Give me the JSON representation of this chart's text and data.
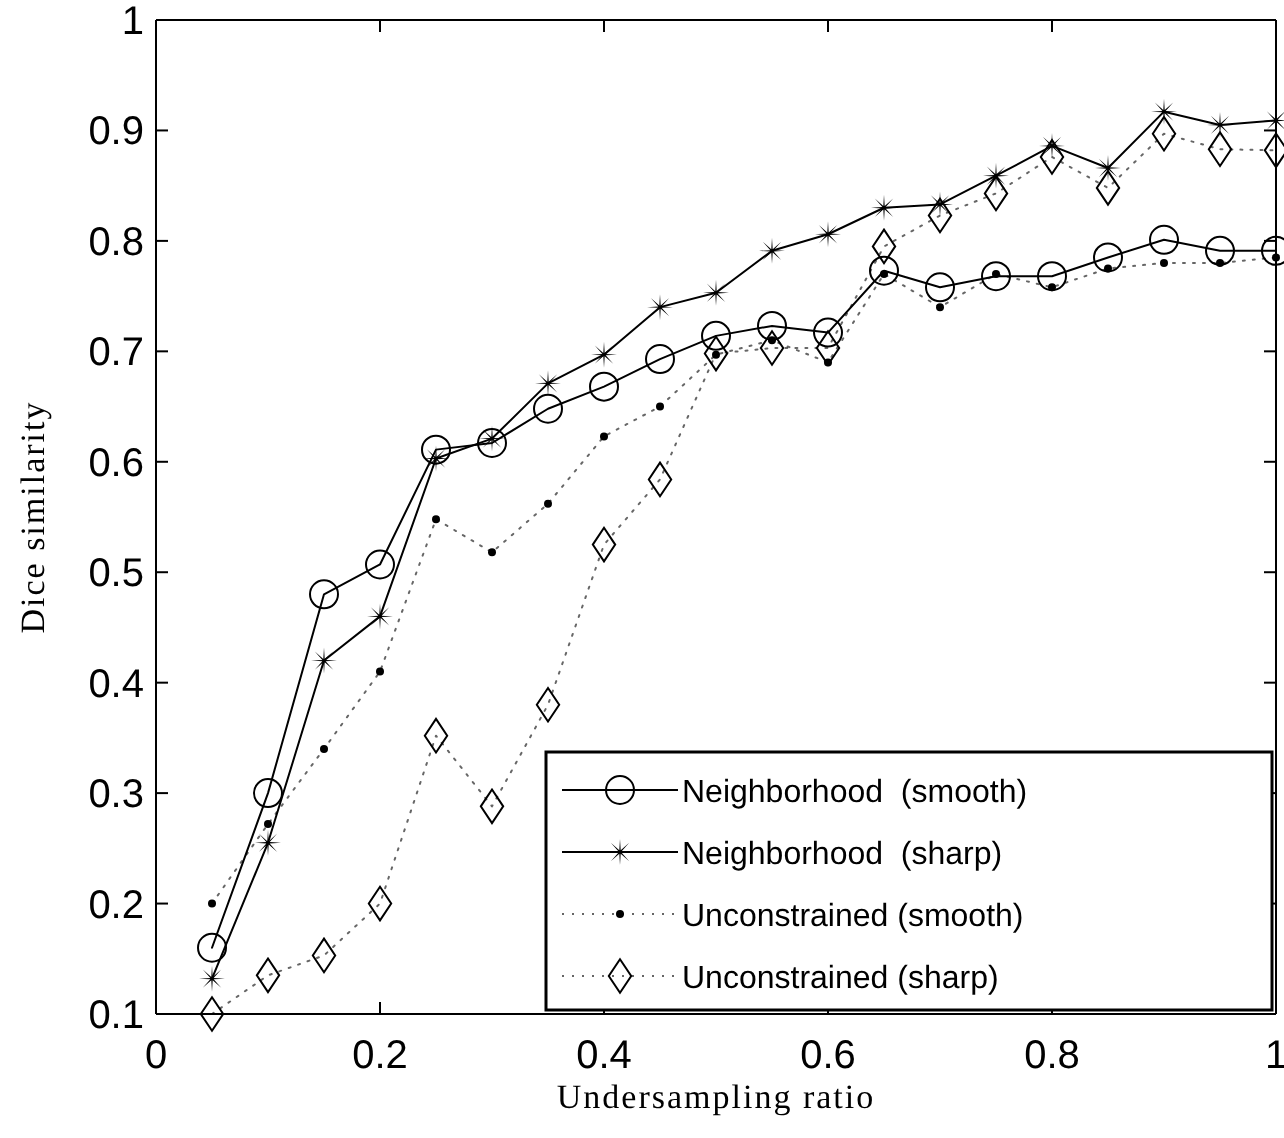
{
  "chart_data": {
    "type": "line",
    "xlabel": "Undersampling ratio",
    "ylabel": "Dice similarity",
    "x": [
      0.05,
      0.1,
      0.15,
      0.2,
      0.25,
      0.3,
      0.35,
      0.4,
      0.45,
      0.5,
      0.55,
      0.6,
      0.65,
      0.7,
      0.75,
      0.8,
      0.85,
      0.9,
      0.95,
      1.0
    ],
    "series": [
      {
        "name": "Neighborhood  (smooth)",
        "color": "#000000",
        "marker": "circle",
        "line_style": "solid",
        "values": [
          0.16,
          0.3,
          0.48,
          0.507,
          0.611,
          0.617,
          0.648,
          0.668,
          0.693,
          0.714,
          0.723,
          0.717,
          0.773,
          0.758,
          0.768,
          0.768,
          0.785,
          0.801,
          0.791,
          0.791
        ]
      },
      {
        "name": "Neighborhood  (sharp)",
        "color": "#000000",
        "marker": "star",
        "line_style": "solid",
        "values": [
          0.132,
          0.255,
          0.42,
          0.46,
          0.603,
          0.621,
          0.671,
          0.697,
          0.74,
          0.753,
          0.791,
          0.806,
          0.83,
          0.833,
          0.859,
          0.886,
          0.866,
          0.917,
          0.905,
          0.909
        ]
      },
      {
        "name": "Unconstrained (smooth)",
        "color": "#000000",
        "marker": "circle",
        "line_style": "dotted",
        "values": [
          0.2,
          0.272,
          0.34,
          0.41,
          0.548,
          0.518,
          0.562,
          0.623,
          0.65,
          0.697,
          0.71,
          0.69,
          0.77,
          0.74,
          0.77,
          0.758,
          0.775,
          0.78,
          0.78,
          0.785
        ]
      },
      {
        "name": "Unconstrained (sharp)",
        "color": "#000000",
        "marker": "diamond",
        "line_style": "dotted",
        "values": [
          0.1,
          0.135,
          0.153,
          0.2,
          0.352,
          0.288,
          0.38,
          0.525,
          0.584,
          0.698,
          0.703,
          0.703,
          0.795,
          0.823,
          0.843,
          0.876,
          0.848,
          0.897,
          0.883,
          0.882
        ]
      }
    ],
    "xlim": [
      0,
      1
    ],
    "xticks": [
      0,
      0.2,
      0.4,
      0.6,
      0.8,
      1
    ],
    "ylim": [
      0.1,
      1
    ],
    "yticks": [
      0.1,
      0.2,
      0.3,
      0.4,
      0.5,
      0.6,
      0.7,
      0.8,
      0.9,
      1
    ],
    "grid": false,
    "legend": "bottom right"
  }
}
